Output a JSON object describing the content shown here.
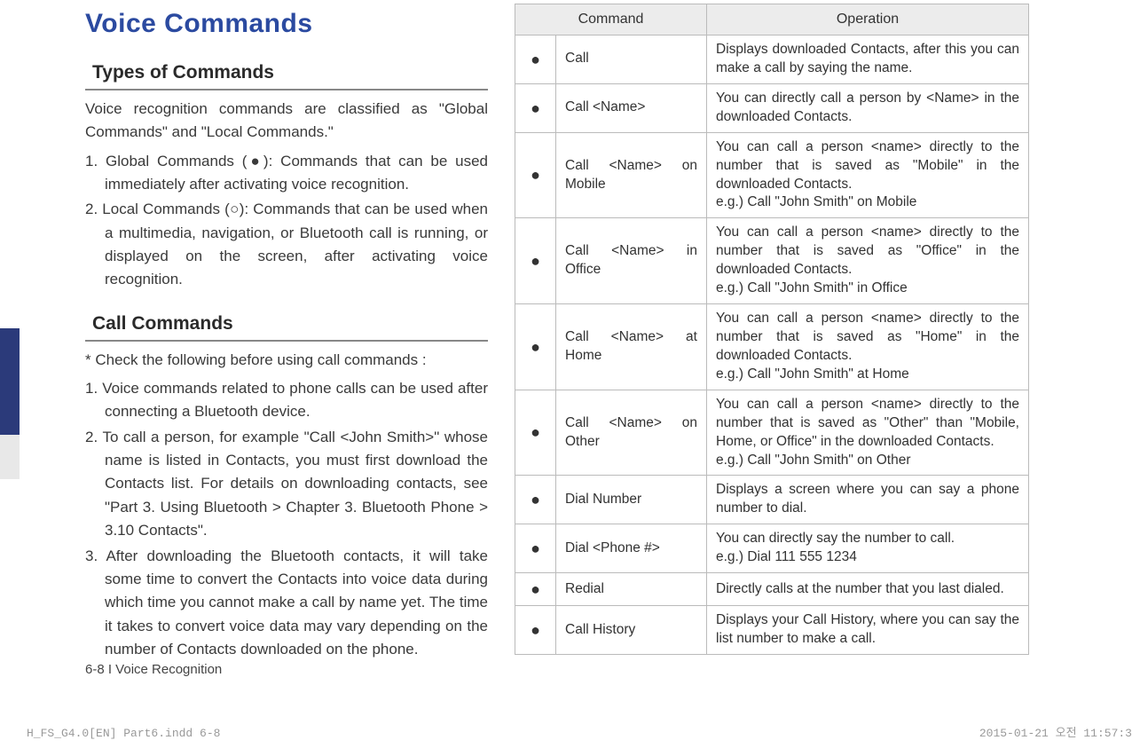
{
  "title": "Voice Commands",
  "sections": {
    "types": {
      "heading": "Types of Commands",
      "intro": "Voice recognition commands are classified as \"Global Commands\" and \"Local Commands.\"",
      "item1": "1. Global Commands (●): Commands that can be used immediately after activating voice recognition.",
      "item2": "2. Local Commands (○): Commands that can be used when a multimedia, navigation, or Bluetooth call is running, or displayed on the screen, after activating voice recognition."
    },
    "call": {
      "heading": "Call Commands",
      "note": "* Check the following before using call commands :",
      "item1": "1.  Voice commands related to phone calls can be used after connecting a Bluetooth device.",
      "item2": "2.  To call a person, for example \"Call <John Smith>\" whose name is listed in Contacts, you must first download the Contacts list. For details on downloading contacts, see \"Part 3. Using Bluetooth > Chapter 3. Bluetooth Phone > 3.10 Contacts\".",
      "item3": "3.  After downloading the Bluetooth contacts, it will take some time to convert the Contacts into voice data during which time you cannot make a call by name yet. The time it takes to convert voice data may vary depending on the number of Contacts downloaded on the phone."
    }
  },
  "table": {
    "head_command": "Command",
    "head_operation": "Operation",
    "rows": [
      {
        "bullet": "●",
        "cmd": "Call",
        "op": "Displays downloaded Contacts, after this you can make a call by saying the name."
      },
      {
        "bullet": "●",
        "cmd": "Call <Name>",
        "op": "You can directly call a person by <Name> in the downloaded Contacts."
      },
      {
        "bullet": "●",
        "cmd": "Call <Name> on Mobile",
        "op": "You can call a person <name> directly to the number that is saved as \"Mobile\"  in the downloaded Contacts.\ne.g.) Call \"John Smith\" on Mobile"
      },
      {
        "bullet": "●",
        "cmd": "Call <Name> in Office",
        "op": "You can call a person <name> directly to the number that is saved as \"Office\" in the downloaded Contacts.\ne.g.) Call \"John Smith\" in Office"
      },
      {
        "bullet": "●",
        "cmd": "Call <Name> at Home",
        "op": "You can call a person <name> directly to the number that is saved as \"Home\" in the downloaded Contacts.\ne.g.) Call \"John Smith\" at Home"
      },
      {
        "bullet": "●",
        "cmd": "Call <Name> on Other",
        "op": "You can call a person <name> directly to the number that is saved as \"Other\" than \"Mobile, Home, or Office\" in the downloaded Contacts.\ne.g.) Call \"John Smith\" on Other"
      },
      {
        "bullet": "●",
        "cmd": "Dial Number",
        "op": "Displays a screen where you can say a phone number to dial."
      },
      {
        "bullet": "●",
        "cmd": "Dial <Phone #>",
        "op": "You can directly say the number to call.\ne.g.) Dial 111 555 1234"
      },
      {
        "bullet": "●",
        "cmd": "Redial",
        "op": "Directly calls at the number that you last dialed."
      },
      {
        "bullet": "●",
        "cmd": "Call History",
        "op": "Displays your Call History, where you can say the list number to make a call."
      }
    ]
  },
  "footer": "6-8 I Voice Recognition",
  "print_left": "H_FS_G4.0[EN] Part6.indd   6-8",
  "print_right": "2015-01-21   오전 11:57:3"
}
